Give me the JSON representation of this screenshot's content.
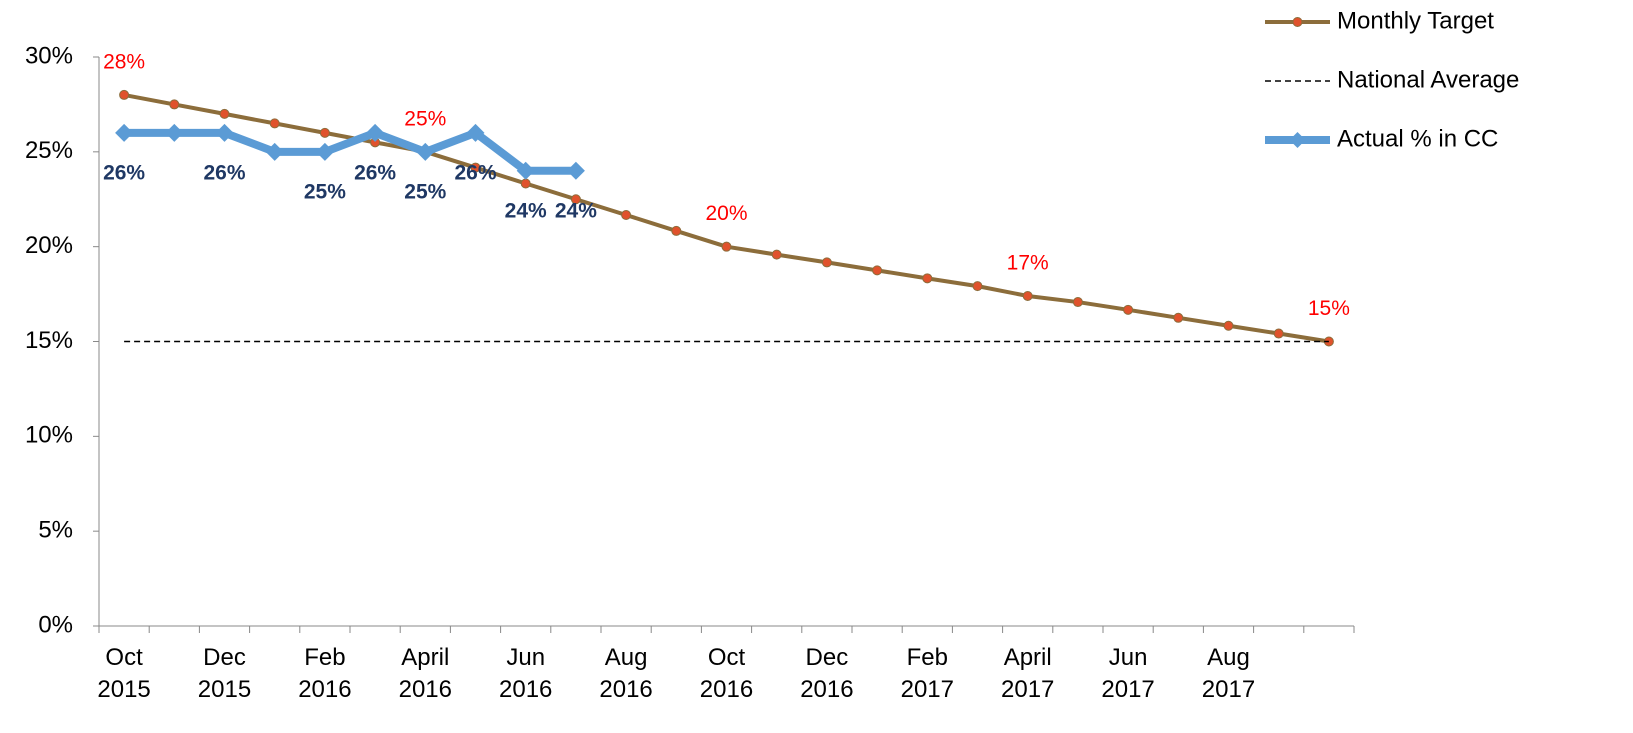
{
  "chart_data": {
    "type": "line",
    "categories": [
      "Oct 2015",
      null,
      "Dec 2015",
      null,
      "Feb 2016",
      null,
      "April 2016",
      null,
      "Jun 2016",
      null,
      "Aug 2016",
      null,
      "Oct 2016",
      null,
      "Dec 2016",
      null,
      "Feb 2017",
      null,
      "April 2017",
      null,
      "Jun 2017",
      null,
      "Aug 2017",
      null,
      null
    ],
    "ylim": [
      0,
      30
    ],
    "yticks": [
      {
        "value": 0,
        "label": "0%"
      },
      {
        "value": 5,
        "label": "5%"
      },
      {
        "value": 10,
        "label": "10%"
      },
      {
        "value": 15,
        "label": "15%"
      },
      {
        "value": 20,
        "label": "20%"
      },
      {
        "value": 25,
        "label": "25%"
      },
      {
        "value": 30,
        "label": "30%"
      }
    ],
    "legend": "top-right",
    "series": [
      {
        "name": "Monthly Target",
        "color": "#8c6d3b",
        "marker": "circle",
        "marker_color": "#e0522c",
        "width": 4,
        "label_color": "#ff0000",
        "values": [
          28,
          27.5,
          27,
          26.5,
          26,
          25.5,
          25,
          24.17,
          23.33,
          22.5,
          21.67,
          20.83,
          20,
          19.58,
          19.17,
          18.75,
          18.33,
          17.92,
          17.4,
          17.08,
          16.67,
          16.25,
          15.83,
          15.42,
          15
        ],
        "value_labels": [
          "28%",
          null,
          null,
          null,
          null,
          null,
          "25%",
          null,
          null,
          null,
          null,
          null,
          "20%",
          null,
          null,
          null,
          null,
          null,
          "17%",
          null,
          null,
          null,
          null,
          null,
          "15%"
        ]
      },
      {
        "name": "National Average",
        "color": "#000000",
        "dash": true,
        "width": 1.5,
        "values": [
          15,
          15,
          15,
          15,
          15,
          15,
          15,
          15,
          15,
          15,
          15,
          15,
          15,
          15,
          15,
          15,
          15,
          15,
          15,
          15,
          15,
          15,
          15,
          15,
          15
        ]
      },
      {
        "name": "Actual % in CC",
        "color": "#5b9bd5",
        "marker": "diamond",
        "marker_color": "#5b9bd5",
        "width": 8,
        "label_color": "#1f3864",
        "label_bold": true,
        "values": [
          26,
          26,
          26,
          25,
          25,
          26,
          25,
          26,
          24,
          24,
          null,
          null,
          null,
          null,
          null,
          null,
          null,
          null,
          null,
          null,
          null,
          null,
          null,
          null,
          null
        ],
        "value_labels": [
          "26%",
          null,
          "26%",
          null,
          "25%",
          "26%",
          "25%",
          "26%",
          "24%",
          "24%",
          null,
          null,
          null,
          null,
          null,
          null,
          null,
          null,
          null,
          null,
          null,
          null,
          null,
          null,
          null
        ]
      }
    ]
  }
}
